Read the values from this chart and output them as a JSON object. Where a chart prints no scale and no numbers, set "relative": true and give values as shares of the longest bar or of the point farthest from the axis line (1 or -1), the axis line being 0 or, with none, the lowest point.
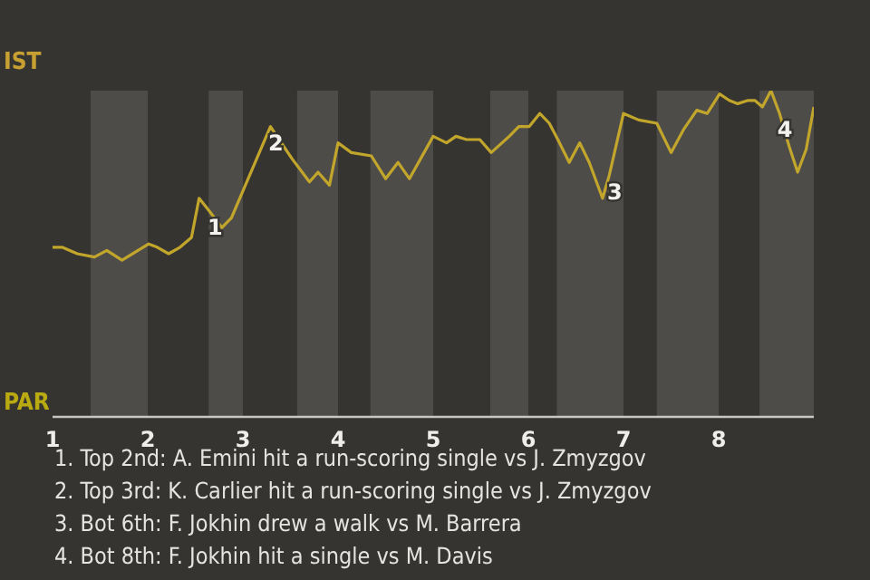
{
  "chart_data": {
    "type": "line",
    "relative": true,
    "x": [
      1.0,
      1.1,
      1.26,
      1.44,
      1.57,
      1.73,
      2.01,
      2.1,
      2.22,
      2.34,
      2.46,
      2.54,
      2.65,
      2.78,
      2.88,
      3.29,
      3.38,
      3.52,
      3.7,
      3.79,
      3.91,
      4.0,
      4.14,
      4.35,
      4.5,
      4.63,
      4.75,
      5.0,
      5.14,
      5.24,
      5.35,
      5.42,
      5.49,
      5.61,
      5.8,
      5.9,
      6.01,
      6.12,
      6.22,
      6.31,
      6.43,
      6.54,
      6.64,
      6.78,
      6.85,
      7.0,
      7.16,
      7.35,
      7.5,
      7.63,
      7.77,
      7.88,
      8.01,
      8.11,
      8.2,
      8.31,
      8.38,
      8.46,
      8.55,
      8.64,
      8.74,
      8.83,
      8.92,
      9.0
    ],
    "series": [
      {
        "color": "#c2a62c",
        "values": [
          0.52,
          0.52,
          0.5,
          0.49,
          0.51,
          0.48,
          0.53,
          0.52,
          0.5,
          0.52,
          0.55,
          0.67,
          0.63,
          0.58,
          0.61,
          0.89,
          0.85,
          0.79,
          0.72,
          0.75,
          0.71,
          0.84,
          0.81,
          0.8,
          0.73,
          0.78,
          0.73,
          0.86,
          0.84,
          0.86,
          0.85,
          0.85,
          0.85,
          0.81,
          0.86,
          0.89,
          0.89,
          0.93,
          0.9,
          0.85,
          0.78,
          0.84,
          0.78,
          0.67,
          0.74,
          0.93,
          0.91,
          0.9,
          0.81,
          0.88,
          0.94,
          0.93,
          0.99,
          0.97,
          0.96,
          0.97,
          0.97,
          0.95,
          1.0,
          0.93,
          0.83,
          0.75,
          0.82,
          0.95
        ]
      }
    ],
    "xlim": [
      1,
      9
    ],
    "xticks": [
      1,
      2,
      3,
      4,
      5,
      6,
      7,
      8
    ],
    "bands": [
      {
        "axis": "x",
        "from": 1.4,
        "to": 2.0,
        "color": "#4e4c49"
      },
      {
        "axis": "x",
        "from": 2.64,
        "to": 3.0,
        "color": "#4e4c49"
      },
      {
        "axis": "x",
        "from": 3.57,
        "to": 4.0,
        "color": "#4e4c49"
      },
      {
        "axis": "x",
        "from": 4.34,
        "to": 5.0,
        "color": "#4e4c49"
      },
      {
        "axis": "x",
        "from": 5.6,
        "to": 6.0,
        "color": "#4e4c49"
      },
      {
        "axis": "x",
        "from": 6.3,
        "to": 7.0,
        "color": "#4e4c49"
      },
      {
        "axis": "x",
        "from": 7.35,
        "to": 8.0,
        "color": "#4e4c49"
      },
      {
        "axis": "x",
        "from": 8.43,
        "to": 9.0,
        "color": "#4e4c49"
      }
    ],
    "annotations": [
      "IST",
      "PAR",
      {
        "text": "1",
        "x": 2.65,
        "y": 0.63
      },
      {
        "text": "2",
        "x": 3.29,
        "y": 0.89
      },
      {
        "text": "3",
        "x": 6.85,
        "y": 0.74
      },
      {
        "text": "4",
        "x": 8.64,
        "y": 0.93
      },
      "1. Top 2nd: A. Emini hit a run-scoring single vs J. Zmyzgov",
      "2. Top 3rd: K. Carlier hit a run-scoring single vs J. Zmyzgov",
      "3. Bot 6th: F. Jokhin drew a walk vs M. Barrera",
      "4. Bot 8th: F. Jokhin hit a single vs M. Davis"
    ]
  }
}
